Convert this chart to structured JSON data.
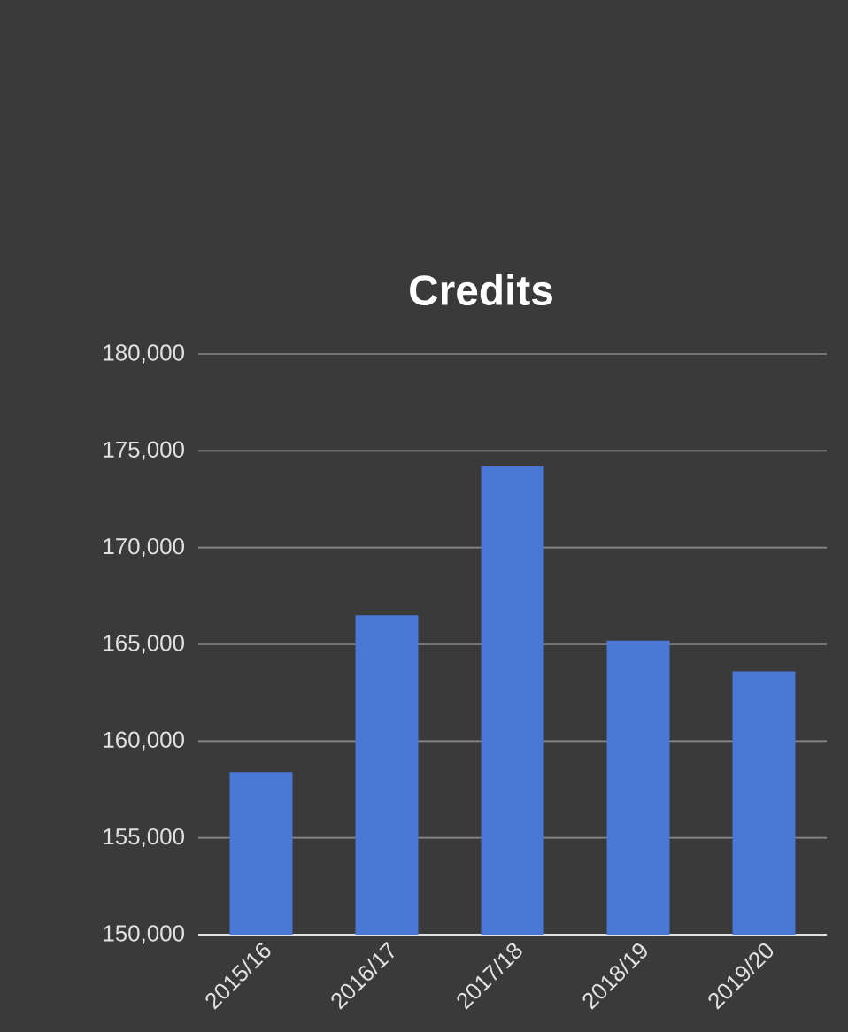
{
  "chart_data": {
    "type": "bar",
    "title": "Credits",
    "categories": [
      "2015/16",
      "2016/17",
      "2017/18",
      "2018/19",
      "2019/20"
    ],
    "values": [
      158400,
      166500,
      174200,
      165200,
      163600
    ],
    "color": "#4a78d6",
    "ylim": [
      150000,
      180000
    ],
    "yticks": [
      {
        "value": 150000,
        "label": "150,000"
      },
      {
        "value": 155000,
        "label": "155,000"
      },
      {
        "value": 160000,
        "label": "160,000"
      },
      {
        "value": 165000,
        "label": "165,000"
      },
      {
        "value": 170000,
        "label": "170,000"
      },
      {
        "value": 175000,
        "label": "175,000"
      },
      {
        "value": 180000,
        "label": "180,000"
      }
    ],
    "grid": "y"
  }
}
